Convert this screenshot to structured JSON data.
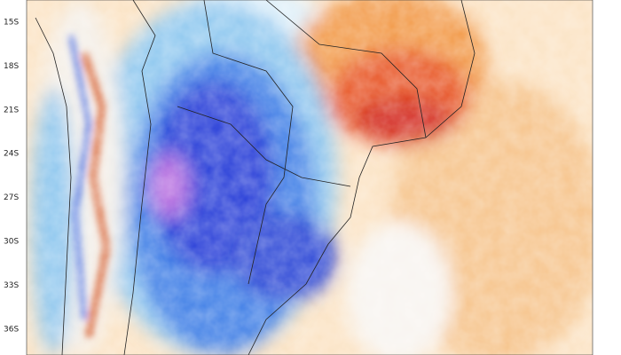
{
  "map": {
    "lat_labels": [
      "15S",
      "18S",
      "21S",
      "24S",
      "27S",
      "30S",
      "33S",
      "36S"
    ]
  }
}
